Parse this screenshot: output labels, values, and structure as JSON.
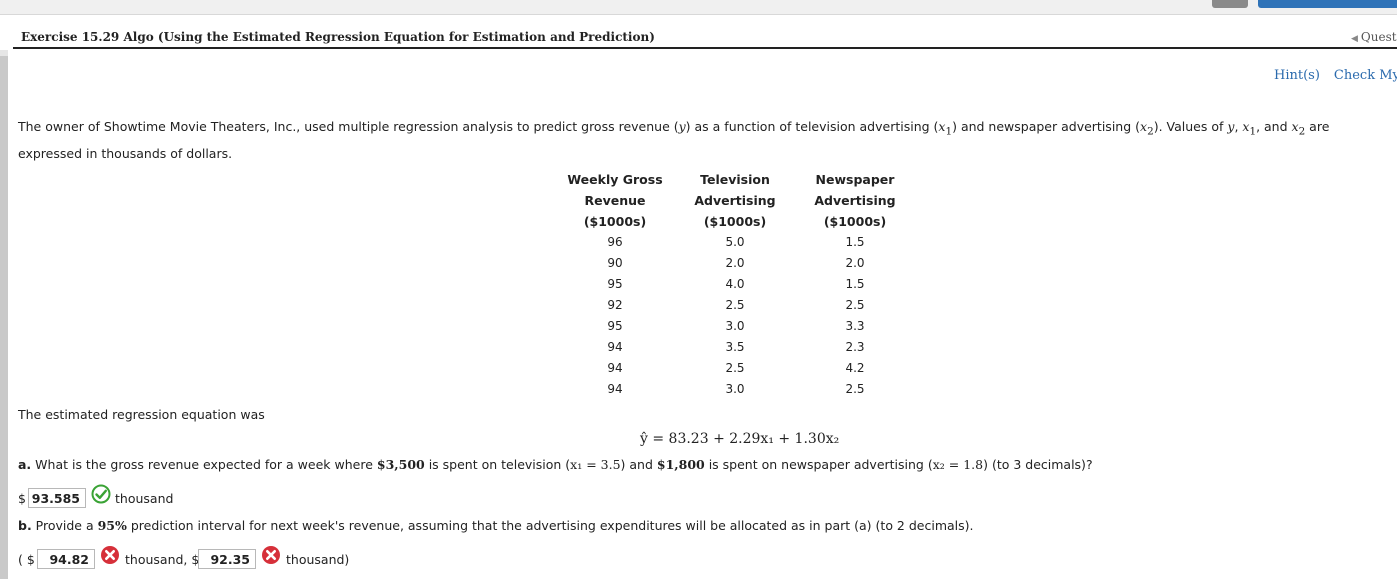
{
  "header": {
    "title": "Exercise 15.29 Algo (Using the Estimated Regression Equation for Estimation and Prediction)",
    "question_nav": "Questi"
  },
  "hints": {
    "hint_label": "Hint(s)",
    "check_label": "Check My"
  },
  "intro": {
    "p1": "The owner of Showtime Movie Theaters, Inc., used multiple regression analysis to predict gross revenue (",
    "y": "y",
    "p2": ") as a function of television advertising (",
    "x1": "x",
    "x1sub": "1",
    "p3": ") and newspaper advertising (",
    "x2": "x",
    "x2sub": "2",
    "p4": "). Values of ",
    "p5": ", ",
    "p6": ", and ",
    "p7": " are expressed in thousands of dollars."
  },
  "table": {
    "headers": [
      [
        "Weekly Gross",
        "Revenue",
        "($1000s)"
      ],
      [
        "Television",
        "Advertising",
        "($1000s)"
      ],
      [
        "Newspaper",
        "Advertising",
        "($1000s)"
      ]
    ],
    "rows": [
      [
        "96",
        "5.0",
        "1.5"
      ],
      [
        "90",
        "2.0",
        "2.0"
      ],
      [
        "95",
        "4.0",
        "1.5"
      ],
      [
        "92",
        "2.5",
        "2.5"
      ],
      [
        "95",
        "3.0",
        "3.3"
      ],
      [
        "94",
        "3.5",
        "2.3"
      ],
      [
        "94",
        "2.5",
        "4.2"
      ],
      [
        "94",
        "3.0",
        "2.5"
      ]
    ]
  },
  "regression": {
    "label": "The estimated regression equation was",
    "equation": "ŷ = 83.23 + 2.29x₁ + 1.30x₂"
  },
  "part_a": {
    "prefix": "a.",
    "t1": " What is the gross revenue expected for a week where ",
    "amt1": "$3,500",
    "t2": " is spent on television (",
    "eq1": "x₁ = 3.5",
    "t3": ") and ",
    "amt2": "$1,800",
    "t4": " is spent on newspaper advertising (",
    "eq2": "x₂ = 1.8",
    "t5": ") (to 3 decimals)?",
    "currency": "$",
    "answer": "93.585",
    "unit": "thousand",
    "status": "correct"
  },
  "part_b": {
    "prefix": "b.",
    "t1": " Provide a ",
    "pct": "95%",
    "t2": " prediction interval for next week's revenue, assuming that the advertising expenditures will be allocated as in part (a) (to 2 decimals).",
    "open": "( $",
    "answer1": "94.82",
    "mid": "thousand, $",
    "answer2": "92.35",
    "close": "thousand)",
    "status1": "incorrect",
    "status2": "incorrect"
  },
  "colors": {
    "link": "#2a6aad",
    "correct": "#3aa335",
    "incorrect": "#d6303a"
  }
}
